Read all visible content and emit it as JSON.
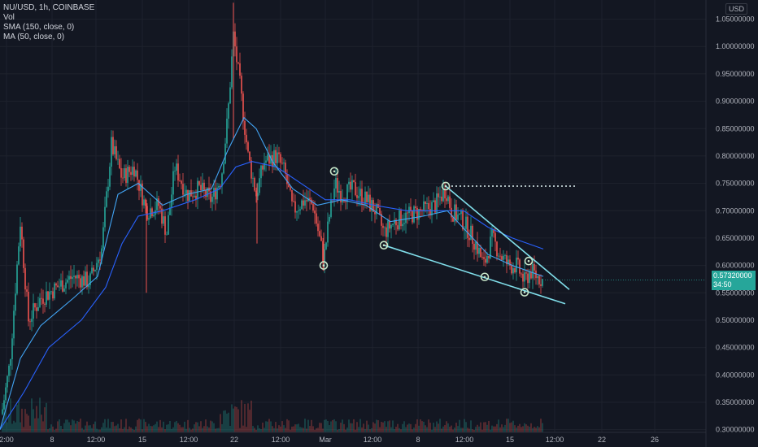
{
  "legend": {
    "symbol": "NU/USD, 1h, COINBASE",
    "vol": "Vol",
    "sma": "SMA (150, close, 0)",
    "ma": "MA (50, close, 0)"
  },
  "currency_label": "USD",
  "current_price": {
    "value": "0.57320000",
    "countdown": "34:50"
  },
  "colors": {
    "background": "#131722",
    "grid": "#1e222d",
    "up": "#26a69a",
    "down": "#ef5350",
    "sma150": "#2962ff",
    "ma50": "#42a5f5",
    "trend": "#80deea",
    "markers": "#c8e6c9"
  },
  "chart_data": {
    "type": "candlestick",
    "y_ticks": [
      "1.05000000",
      "1.00000000",
      "0.95000000",
      "0.90000000",
      "0.85000000",
      "0.80000000",
      "0.75000000",
      "0.70000000",
      "0.65000000",
      "0.60000000",
      "0.55000000",
      "0.50000000",
      "0.45000000",
      "0.40000000",
      "0.35000000",
      "0.30000000"
    ],
    "ylim": [
      0.295,
      1.085
    ],
    "x_ticks": [
      "2:00",
      "8",
      "12:00",
      "15",
      "12:00",
      "22",
      "12:00",
      "Mar",
      "12:00",
      "8",
      "12:00",
      "15",
      "12:00",
      "22",
      "26"
    ],
    "price_path": [
      [
        0,
        0.31
      ],
      [
        12,
        0.42
      ],
      [
        25,
        0.68
      ],
      [
        35,
        0.5
      ],
      [
        50,
        0.54
      ],
      [
        70,
        0.56
      ],
      [
        90,
        0.58
      ],
      [
        110,
        0.57
      ],
      [
        125,
        0.63
      ],
      [
        137,
        0.82
      ],
      [
        150,
        0.76
      ],
      [
        165,
        0.78
      ],
      [
        180,
        0.7
      ],
      [
        195,
        0.71
      ],
      [
        205,
        0.66
      ],
      [
        215,
        0.78
      ],
      [
        230,
        0.73
      ],
      [
        245,
        0.74
      ],
      [
        260,
        0.72
      ],
      [
        272,
        0.76
      ],
      [
        280,
        0.87
      ],
      [
        287,
        1.02
      ],
      [
        295,
        0.93
      ],
      [
        305,
        0.8
      ],
      [
        315,
        0.73
      ],
      [
        325,
        0.79
      ],
      [
        340,
        0.8
      ],
      [
        350,
        0.77
      ],
      [
        360,
        0.7
      ],
      [
        375,
        0.72
      ],
      [
        385,
        0.71
      ],
      [
        398,
        0.61
      ],
      [
        405,
        0.69
      ],
      [
        412,
        0.75
      ],
      [
        420,
        0.73
      ],
      [
        435,
        0.74
      ],
      [
        450,
        0.72
      ],
      [
        462,
        0.7
      ],
      [
        472,
        0.66
      ],
      [
        485,
        0.68
      ],
      [
        500,
        0.69
      ],
      [
        520,
        0.7
      ],
      [
        535,
        0.71
      ],
      [
        548,
        0.74
      ],
      [
        555,
        0.7
      ],
      [
        570,
        0.68
      ],
      [
        585,
        0.64
      ],
      [
        595,
        0.6
      ],
      [
        605,
        0.65
      ],
      [
        615,
        0.62
      ],
      [
        625,
        0.6
      ],
      [
        635,
        0.6
      ],
      [
        645,
        0.57
      ],
      [
        652,
        0.59
      ],
      [
        660,
        0.58
      ],
      [
        668,
        0.573
      ]
    ],
    "sma150_path": [
      [
        0,
        0.3
      ],
      [
        30,
        0.37
      ],
      [
        60,
        0.45
      ],
      [
        100,
        0.5
      ],
      [
        130,
        0.56
      ],
      [
        150,
        0.64
      ],
      [
        170,
        0.69
      ],
      [
        200,
        0.7
      ],
      [
        240,
        0.72
      ],
      [
        270,
        0.74
      ],
      [
        290,
        0.78
      ],
      [
        310,
        0.79
      ],
      [
        340,
        0.78
      ],
      [
        370,
        0.75
      ],
      [
        400,
        0.72
      ],
      [
        430,
        0.72
      ],
      [
        460,
        0.71
      ],
      [
        500,
        0.7
      ],
      [
        540,
        0.7
      ],
      [
        570,
        0.7
      ],
      [
        600,
        0.67
      ],
      [
        630,
        0.65
      ],
      [
        668,
        0.63
      ]
    ],
    "ma50_path": [
      [
        0,
        0.3
      ],
      [
        25,
        0.43
      ],
      [
        50,
        0.49
      ],
      [
        90,
        0.54
      ],
      [
        120,
        0.58
      ],
      [
        145,
        0.73
      ],
      [
        170,
        0.75
      ],
      [
        200,
        0.71
      ],
      [
        230,
        0.73
      ],
      [
        260,
        0.74
      ],
      [
        280,
        0.81
      ],
      [
        300,
        0.87
      ],
      [
        315,
        0.85
      ],
      [
        335,
        0.79
      ],
      [
        360,
        0.74
      ],
      [
        390,
        0.71
      ],
      [
        420,
        0.72
      ],
      [
        450,
        0.71
      ],
      [
        480,
        0.68
      ],
      [
        520,
        0.69
      ],
      [
        550,
        0.7
      ],
      [
        575,
        0.66
      ],
      [
        600,
        0.62
      ],
      [
        630,
        0.6
      ],
      [
        668,
        0.58
      ]
    ],
    "trend_lines": [
      [
        [
          548,
          0.745
        ],
        [
          700,
          0.556
        ]
      ],
      [
        [
          472,
          0.637
        ],
        [
          695,
          0.53
        ]
      ]
    ],
    "resistance_dotted": [
      [
        555,
        0.745
      ],
      [
        707,
        0.745
      ]
    ],
    "markers": [
      [
        398,
        0.6
      ],
      [
        411,
        0.772
      ],
      [
        472,
        0.637
      ],
      [
        548,
        0.745
      ],
      [
        596,
        0.579
      ],
      [
        645,
        0.551
      ],
      [
        650,
        0.608
      ]
    ]
  }
}
